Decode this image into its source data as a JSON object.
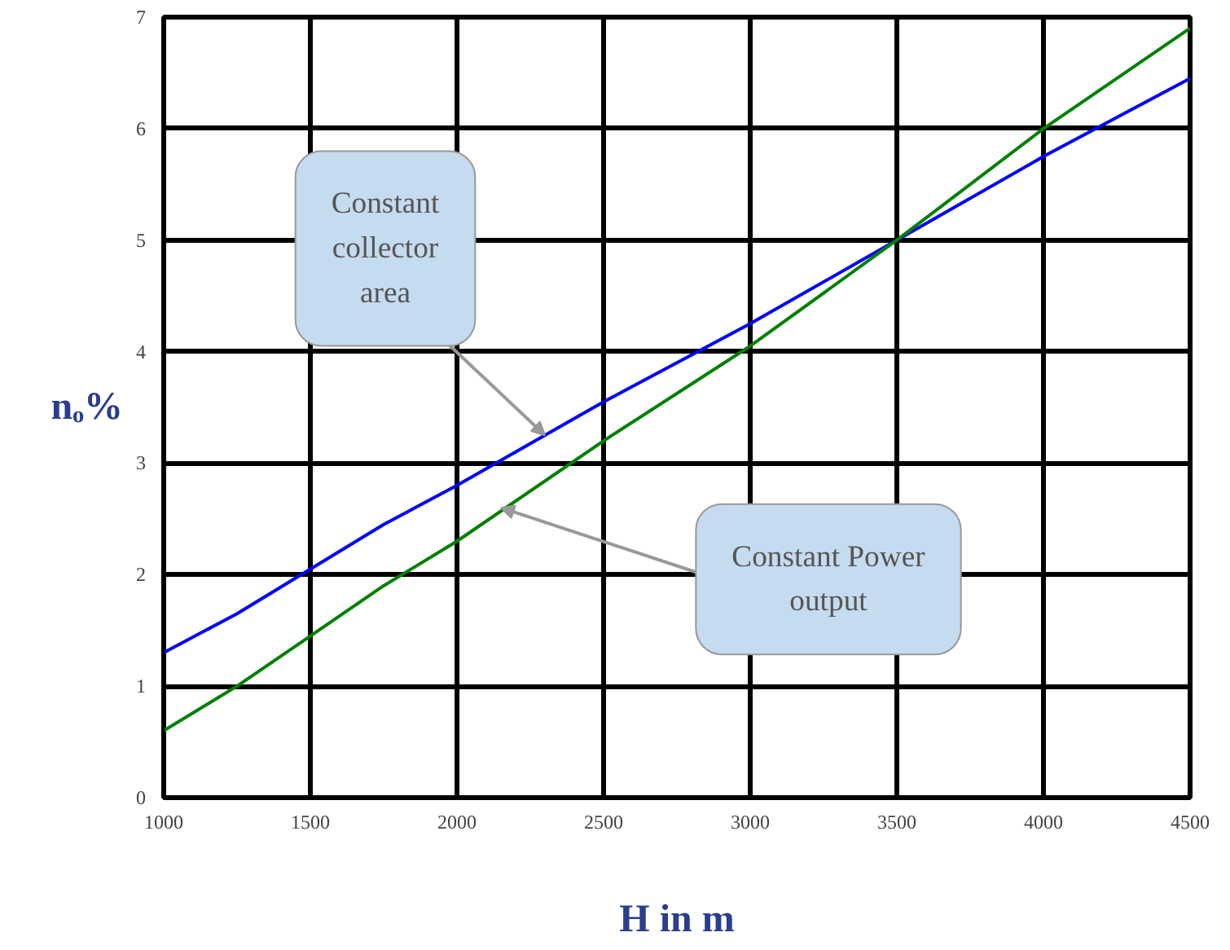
{
  "chart_data": {
    "type": "line",
    "xlabel": "H in m",
    "ylabel": "nₒ%",
    "x": [
      1000,
      1250,
      1500,
      1750,
      2000,
      2500,
      3000,
      3500,
      4000,
      4500
    ],
    "series": [
      {
        "color": "#0000ff",
        "values": [
          1.3,
          1.65,
          2.05,
          2.45,
          2.8,
          3.55,
          4.25,
          5.0,
          5.75,
          6.45
        ]
      },
      {
        "color": "#008000",
        "values": [
          0.6,
          1.0,
          1.45,
          1.9,
          2.3,
          3.2,
          4.05,
          5.0,
          6.0,
          6.9
        ]
      }
    ],
    "xlim": [
      1000,
      4500
    ],
    "ylim": [
      0,
      7
    ],
    "xticks": [
      1000,
      1500,
      2000,
      2500,
      3000,
      3500,
      4000,
      4500
    ],
    "yticks": [
      0,
      1,
      2,
      3,
      4,
      5,
      6,
      7
    ],
    "grid": true,
    "marker": "none",
    "line_style": "solid",
    "annotations": [
      {
        "text": "Constant collector area",
        "x": 2300,
        "y": 3.25
      },
      {
        "text": "Constant Power output",
        "x": 2150,
        "y": 2.6
      }
    ]
  }
}
